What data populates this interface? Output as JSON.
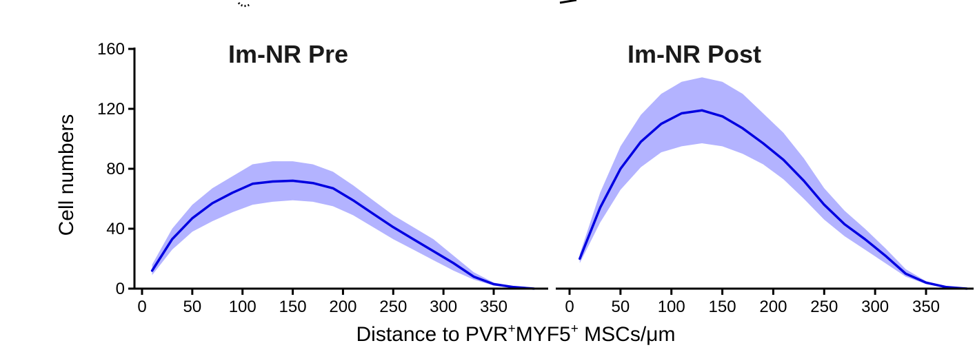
{
  "chart_data": {
    "type": "line",
    "ylabel": "Cell numbers",
    "xlabel_parts": [
      "Distance to PVR",
      "+",
      "MYF5",
      "+",
      " MSCs/μm"
    ],
    "ylim": [
      0,
      160
    ],
    "yticks": [
      0,
      40,
      80,
      120,
      160
    ],
    "xticks": [
      0,
      50,
      100,
      150,
      200,
      250,
      300,
      350
    ],
    "xlim": [
      -10,
      395
    ],
    "colors": {
      "band": "#b3b3ff",
      "line": "#0000e0"
    },
    "panels": [
      {
        "title": "Im-NR Pre",
        "x": [
          10,
          30,
          50,
          70,
          90,
          110,
          130,
          150,
          170,
          190,
          210,
          230,
          250,
          270,
          290,
          310,
          330,
          350,
          370,
          390
        ],
        "mean": [
          12,
          33,
          47,
          57,
          64,
          70,
          71.5,
          72,
          70.5,
          67,
          59,
          50,
          41,
          33,
          25,
          17,
          8,
          3,
          1,
          0
        ],
        "upper": [
          16,
          40,
          56,
          67,
          75,
          83,
          85,
          85,
          83,
          78,
          69,
          59,
          49,
          41,
          33,
          22,
          11,
          4,
          1.5,
          0.5
        ],
        "lower": [
          9,
          26,
          38,
          45,
          51,
          56,
          58,
          59,
          58,
          55,
          49,
          41,
          33,
          26,
          19,
          12,
          6,
          2,
          0.5,
          0
        ]
      },
      {
        "title": "Im-NR Post",
        "x": [
          10,
          30,
          50,
          70,
          90,
          110,
          130,
          150,
          170,
          190,
          210,
          230,
          250,
          270,
          290,
          310,
          330,
          350,
          370,
          390
        ],
        "mean": [
          20,
          54,
          80,
          98,
          110,
          117,
          119,
          115,
          107,
          97,
          86,
          72,
          56,
          43,
          33,
          22,
          10,
          4,
          1,
          0
        ],
        "upper": [
          23,
          64,
          95,
          116,
          130,
          138,
          141,
          138,
          130,
          117,
          104,
          87,
          67,
          52,
          40,
          27,
          13,
          5,
          1.5,
          0.5
        ],
        "lower": [
          17,
          44,
          66,
          81,
          91,
          95,
          97,
          95,
          90,
          83,
          73,
          60,
          46,
          35,
          26,
          17,
          8,
          3,
          0.5,
          0
        ]
      }
    ]
  }
}
